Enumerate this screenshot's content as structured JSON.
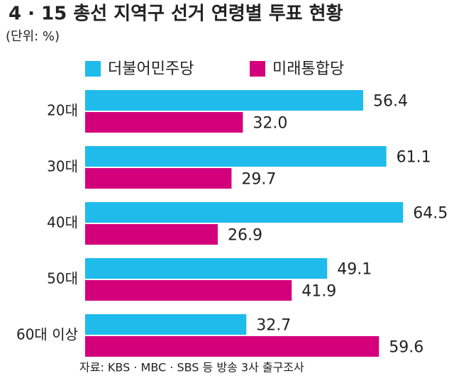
{
  "chart_data": {
    "type": "bar",
    "orientation": "horizontal",
    "title": "4 · 15 총선 지역구 선거 연령별 투표 현황",
    "subtitle": "(단위: %)",
    "source": "자료: KBS · MBC · SBS 등 방송 3사 출구조사",
    "categories": [
      "20대",
      "30대",
      "40대",
      "50대",
      "60대 이상"
    ],
    "series": [
      {
        "name": "더불어민주당",
        "color": "#1fbbea",
        "values": [
          56.4,
          61.1,
          64.5,
          49.1,
          32.7
        ],
        "value_labels": [
          "56.4",
          "61.1",
          "64.5",
          "49.1",
          "32.7"
        ]
      },
      {
        "name": "미래통합당",
        "color": "#d4007b",
        "values": [
          32.0,
          29.7,
          26.9,
          41.9,
          59.6
        ],
        "value_labels": [
          "32.0",
          "29.7",
          "26.9",
          "41.9",
          "59.6"
        ]
      }
    ],
    "legend": "top"
  }
}
